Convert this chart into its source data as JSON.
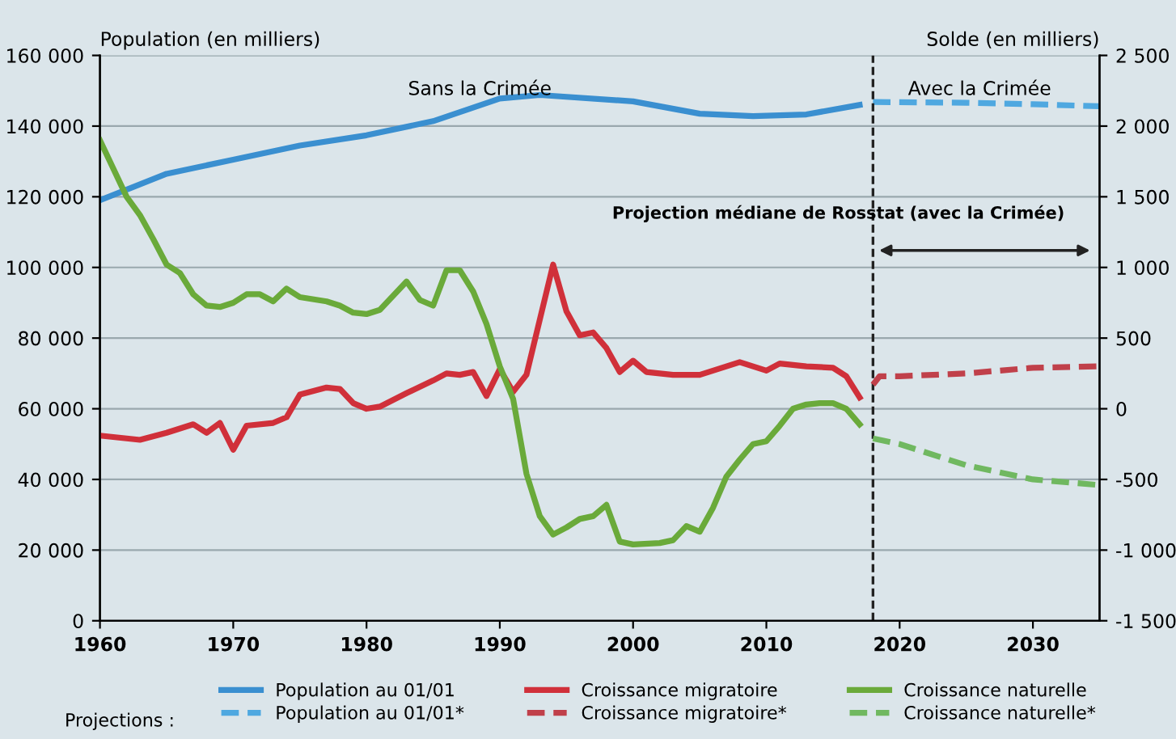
{
  "chart_data": {
    "type": "line",
    "ylabel": "Population (en milliers)",
    "y2label": "Solde (en milliers)",
    "xlim": [
      1960,
      2035
    ],
    "xticks": [
      1960,
      1970,
      1980,
      1990,
      2000,
      2010,
      2020,
      2030
    ],
    "ylim": [
      0,
      160000
    ],
    "yticks": [
      {
        "value": 0,
        "label": "0"
      },
      {
        "value": 20000,
        "label": "20 000"
      },
      {
        "value": 40000,
        "label": "40 000"
      },
      {
        "value": 60000,
        "label": "60 000"
      },
      {
        "value": 80000,
        "label": "80 000"
      },
      {
        "value": 100000,
        "label": "100 000"
      },
      {
        "value": 120000,
        "label": "120 000"
      },
      {
        "value": 140000,
        "label": "140 000"
      },
      {
        "value": 160000,
        "label": "160 000"
      }
    ],
    "y2lim": [
      -1500,
      2500
    ],
    "y2ticks": [
      {
        "value": -1500,
        "label": "-1 500"
      },
      {
        "value": -1000,
        "label": "-1 000"
      },
      -500,
      0,
      500,
      {
        "value": 1000,
        "label": "1 000"
      },
      {
        "value": 1500,
        "label": "1 500"
      },
      {
        "value": 2000,
        "label": "2 000"
      },
      {
        "value": 2500,
        "label": "2 500"
      }
    ],
    "grid": "y",
    "legend": "bottom",
    "series": [
      {
        "name": "Population au 01/01",
        "color": "#3a8fd0",
        "line_style": "solid",
        "x": [
          1960,
          1965,
          1970,
          1975,
          1980,
          1985,
          1990,
          1993,
          2000,
          2005,
          2009,
          2013,
          2017
        ],
        "values": [
          119000,
          126500,
          130500,
          134500,
          137400,
          141400,
          147800,
          148800,
          147000,
          143500,
          142800,
          143300,
          146000
        ]
      },
      {
        "name": "Population au 01/01*",
        "color": "#4fa8e0",
        "line_style": "dashed",
        "x": [
          2018,
          2025,
          2030,
          2035
        ],
        "values": [
          146800,
          146600,
          146200,
          145600
        ]
      },
      {
        "name": "Croissance migratoire",
        "color": "#d0303a",
        "line_style": "solid",
        "axis": "y2",
        "x": [
          1960,
          1963,
          1965,
          1967,
          1968,
          1969,
          1970,
          1971,
          1973,
          1974,
          1975,
          1977,
          1978,
          1979,
          1980,
          1981,
          1983,
          1985,
          1986,
          1987,
          1988,
          1989,
          1990,
          1991,
          1992,
          1994,
          1995,
          1996,
          1997,
          1998,
          1999,
          2000,
          2001,
          2003,
          2005,
          2007,
          2008,
          2010,
          2011,
          2013,
          2015,
          2016,
          2017
        ],
        "values": [
          -190,
          -220,
          -170,
          -110,
          -170,
          -100,
          -290,
          -120,
          -100,
          -60,
          100,
          150,
          140,
          40,
          0,
          15,
          110,
          200,
          250,
          240,
          260,
          90,
          280,
          120,
          240,
          1020,
          690,
          520,
          540,
          430,
          260,
          340,
          260,
          240,
          240,
          300,
          330,
          270,
          320,
          300,
          290,
          230,
          80
        ]
      },
      {
        "name": "Croissance migratoire*",
        "color": "#c0404a",
        "line_style": "dashed",
        "axis": "y2",
        "x": [
          2018,
          2018.5,
          2020,
          2025,
          2030,
          2035
        ],
        "values": [
          170,
          230,
          230,
          250,
          290,
          300
        ]
      },
      {
        "name": "Croissance naturelle",
        "color": "#6aaa3a",
        "line_style": "solid",
        "axis": "y2",
        "x": [
          1960,
          1962,
          1963,
          1964,
          1965,
          1966,
          1967,
          1968,
          1969,
          1970,
          1971,
          1972,
          1973,
          1974,
          1975,
          1977,
          1978,
          1979,
          1980,
          1981,
          1982,
          1983,
          1984,
          1985,
          1986,
          1987,
          1988,
          1989,
          1990,
          1991,
          1992,
          1993,
          1994,
          1995,
          1996,
          1997,
          1998,
          1999,
          2000,
          2002,
          2003,
          2004,
          2005,
          2006,
          2007,
          2008,
          2009,
          2010,
          2011,
          2012,
          2013,
          2014,
          2015,
          2016,
          2017
        ],
        "values": [
          1900,
          1500,
          1370,
          1200,
          1020,
          960,
          810,
          730,
          720,
          750,
          810,
          810,
          760,
          850,
          790,
          760,
          730,
          680,
          670,
          700,
          800,
          900,
          770,
          730,
          980,
          980,
          830,
          600,
          300,
          70,
          -460,
          -760,
          -890,
          -840,
          -780,
          -760,
          -680,
          -940,
          -960,
          -950,
          -930,
          -830,
          -870,
          -700,
          -480,
          -360,
          -250,
          -230,
          -120,
          0,
          30,
          40,
          40,
          0,
          -110
        ]
      },
      {
        "name": "Croissance naturelle*",
        "color": "#70b860",
        "line_style": "dashed",
        "axis": "y2",
        "x": [
          2018,
          2020,
          2025,
          2030,
          2035
        ],
        "values": [
          -210,
          -250,
          -400,
          -500,
          -540
        ]
      }
    ],
    "ref_lines": [
      {
        "axis": "x",
        "value": 2018,
        "label": null,
        "color": "#222222",
        "line_style": "dashed"
      }
    ],
    "annotations": [
      "Sans la Crimée",
      "Avec la Crimée",
      "Projection médiane de Rosstat (avec la Crimée)",
      "Projections :"
    ]
  }
}
